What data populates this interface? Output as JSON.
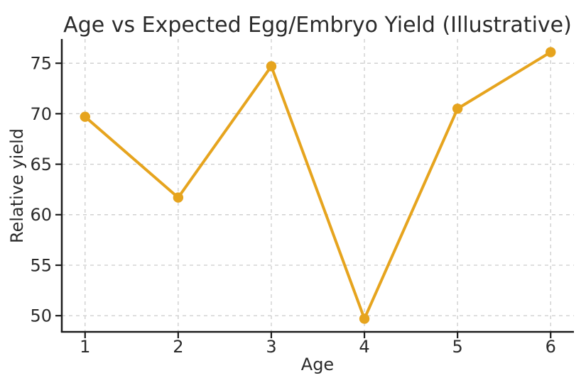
{
  "chart_data": {
    "type": "line",
    "title": "Age vs Expected Egg/Embryo Yield (Illustrative)",
    "xlabel": "Age",
    "ylabel": "Relative yield",
    "x": [
      1,
      2,
      3,
      4,
      5,
      6
    ],
    "series": [
      {
        "name": "Relative yield",
        "values": [
          69.7,
          61.7,
          74.7,
          49.7,
          70.5,
          76.1
        ]
      }
    ],
    "xlim": [
      0.75,
      6.25
    ],
    "ylim": [
      48.4,
      77.4
    ],
    "xticks": [
      "1",
      "2",
      "3",
      "4",
      "5",
      "6"
    ],
    "xtick_values": [
      1,
      2,
      3,
      4,
      5,
      6
    ],
    "yticks": [
      "50",
      "55",
      "60",
      "65",
      "70",
      "75"
    ],
    "ytick_values": [
      50,
      55,
      60,
      65,
      70,
      75
    ],
    "grid": "dashed",
    "legend": "none",
    "colors": {
      "line": "#E6A41E",
      "marker": "#E6A41E",
      "grid": "#cccccc",
      "axis": "#1c1c1c",
      "text": "#2b2b2b",
      "background": "#ffffff"
    }
  }
}
